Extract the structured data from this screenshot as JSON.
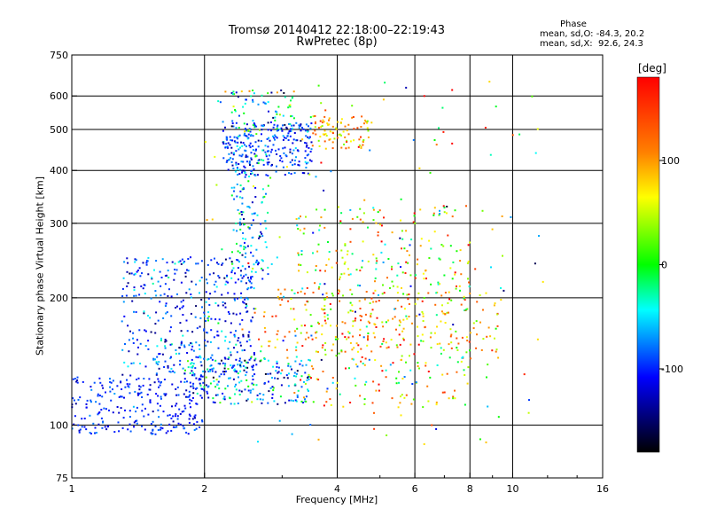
{
  "chart_data": {
    "type": "scatter",
    "title": "Tromsø 20140412 22:18:00–22:19:43",
    "subtitle": "RwPretec (8p)",
    "xlabel": "Frequency [MHz]",
    "ylabel": "Stationary phase Virtual Height [km]",
    "x_scale": "log",
    "y_scale": "log",
    "xlim": [
      1,
      16
    ],
    "ylim": [
      75,
      750
    ],
    "x_ticks": [
      1,
      2,
      4,
      6,
      8,
      10,
      16
    ],
    "x_tick_labels": [
      "1",
      "2",
      "4",
      "6",
      "8",
      "10",
      "16"
    ],
    "y_ticks": [
      75,
      100,
      200,
      300,
      400,
      500,
      600,
      750
    ],
    "y_tick_labels": [
      "75",
      "100",
      "200",
      "300",
      "400",
      "500",
      "600",
      "750"
    ],
    "grid": true,
    "colorbar": {
      "unit": "[deg]",
      "range": [
        -180,
        180
      ],
      "ticks": [
        100,
        0,
        -100
      ],
      "tick_labels": [
        "100",
        "0",
        "-100"
      ],
      "colors": [
        "#ff0000",
        "#ff8000",
        "#ffff00",
        "#00ff00",
        "#00ffff",
        "#0000ff",
        "#000000"
      ]
    },
    "stats": {
      "title": "Phase",
      "o_line": "mean, sd,O: -84.3, 20.2",
      "x_line": "mean, sd,X:  92.6, 24.3"
    },
    "clusters": [
      {
        "x": [
          1.0,
          2.0
        ],
        "y": [
          95,
          130
        ],
        "phase": -100,
        "phase_sd": 15,
        "count": 260
      },
      {
        "x": [
          1.3,
          2.6
        ],
        "y": [
          130,
          250
        ],
        "phase": -95,
        "phase_sd": 30,
        "count": 420
      },
      {
        "x": [
          1.8,
          3.5
        ],
        "y": [
          112,
          145
        ],
        "phase": -70,
        "phase_sd": 45,
        "count": 220
      },
      {
        "x": [
          2.2,
          3.5
        ],
        "y": [
          390,
          520
        ],
        "phase": -95,
        "phase_sd": 25,
        "count": 260
      },
      {
        "x": [
          2.3,
          3.2
        ],
        "y": [
          480,
          620
        ],
        "phase": -40,
        "phase_sd": 60,
        "count": 80
      },
      {
        "x": [
          2.3,
          2.8
        ],
        "y": [
          220,
          450
        ],
        "phase": -60,
        "phase_sd": 40,
        "count": 140
      },
      {
        "x": [
          3.5,
          4.8
        ],
        "y": [
          450,
          540
        ],
        "phase": 90,
        "phase_sd": 40,
        "count": 90
      },
      {
        "x": [
          3.2,
          8.0
        ],
        "y": [
          110,
          330
        ],
        "phase": 60,
        "phase_sd": 70,
        "count": 420
      },
      {
        "x": [
          2.6,
          9.5
        ],
        "y": [
          150,
          210
        ],
        "phase": 95,
        "phase_sd": 40,
        "count": 180
      },
      {
        "x": [
          2.0,
          12.0
        ],
        "y": [
          90,
          650
        ],
        "phase": 20,
        "phase_sd": 90,
        "count": 160
      }
    ]
  }
}
